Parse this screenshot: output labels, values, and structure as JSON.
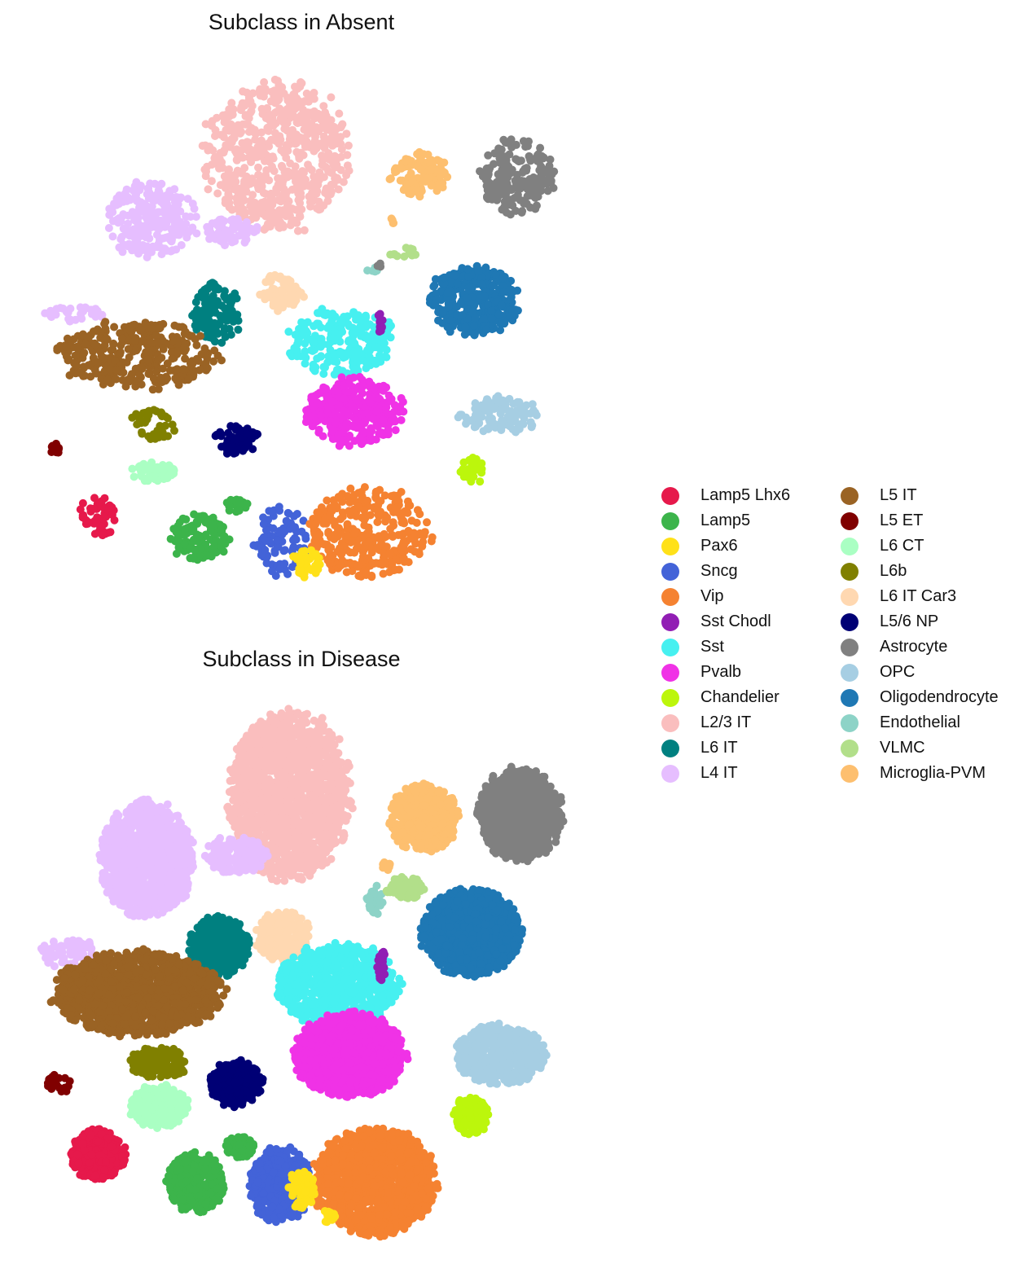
{
  "chart_data": [
    {
      "type": "scatter",
      "title": "Subclass in Absent",
      "axes_visible": false,
      "grid": false,
      "xlim": [
        0,
        700
      ],
      "ylim": [
        0,
        700
      ],
      "legend_placement": "right",
      "clusters": [
        {
          "name": "L2/3 IT",
          "x": 340,
          "y": 190,
          "rx": 95,
          "ry": 100,
          "n": 620
        },
        {
          "name": "L4 IT",
          "x": 185,
          "y": 270,
          "rx": 60,
          "ry": 50,
          "n": 260
        },
        {
          "name": "L4 IT",
          "x": 285,
          "y": 285,
          "rx": 35,
          "ry": 20,
          "n": 60
        },
        {
          "name": "L4 IT",
          "x": 90,
          "y": 385,
          "rx": 40,
          "ry": 10,
          "n": 35
        },
        {
          "name": "Microglia-PVM",
          "x": 515,
          "y": 215,
          "rx": 38,
          "ry": 30,
          "n": 110
        },
        {
          "name": "Astrocyte",
          "x": 635,
          "y": 215,
          "rx": 48,
          "ry": 50,
          "n": 190
        },
        {
          "name": "L6 IT",
          "x": 265,
          "y": 385,
          "rx": 32,
          "ry": 40,
          "n": 110
        },
        {
          "name": "L6 IT Car3",
          "x": 345,
          "y": 360,
          "rx": 30,
          "ry": 25,
          "n": 70
        },
        {
          "name": "Oligodendrocyte",
          "x": 580,
          "y": 370,
          "rx": 60,
          "ry": 45,
          "n": 330
        },
        {
          "name": "Sst",
          "x": 420,
          "y": 420,
          "rx": 70,
          "ry": 45,
          "n": 230
        },
        {
          "name": "Sst Chodl",
          "x": 467,
          "y": 395,
          "rx": 4,
          "ry": 15,
          "n": 10
        },
        {
          "name": "L5 IT",
          "x": 170,
          "y": 435,
          "rx": 105,
          "ry": 45,
          "n": 350
        },
        {
          "name": "Pvalb",
          "x": 435,
          "y": 505,
          "rx": 65,
          "ry": 45,
          "n": 330
        },
        {
          "name": "OPC",
          "x": 610,
          "y": 510,
          "rx": 55,
          "ry": 25,
          "n": 110
        },
        {
          "name": "L6b",
          "x": 190,
          "y": 520,
          "rx": 35,
          "ry": 20,
          "n": 40
        },
        {
          "name": "L5/6 NP",
          "x": 290,
          "y": 540,
          "rx": 30,
          "ry": 20,
          "n": 70
        },
        {
          "name": "L5 ET",
          "x": 68,
          "y": 550,
          "rx": 8,
          "ry": 8,
          "n": 12
        },
        {
          "name": "L6 CT",
          "x": 190,
          "y": 580,
          "rx": 30,
          "ry": 15,
          "n": 50
        },
        {
          "name": "Chandelier",
          "x": 580,
          "y": 578,
          "rx": 15,
          "ry": 18,
          "n": 30
        },
        {
          "name": "Lamp5 Lhx6",
          "x": 122,
          "y": 632,
          "rx": 25,
          "ry": 27,
          "n": 50
        },
        {
          "name": "Lamp5",
          "x": 245,
          "y": 660,
          "rx": 40,
          "ry": 30,
          "n": 120
        },
        {
          "name": "Lamp5",
          "x": 290,
          "y": 622,
          "rx": 15,
          "ry": 12,
          "n": 20
        },
        {
          "name": "Sncg",
          "x": 345,
          "y": 665,
          "rx": 35,
          "ry": 45,
          "n": 90
        },
        {
          "name": "Vip",
          "x": 455,
          "y": 655,
          "rx": 80,
          "ry": 60,
          "n": 340
        },
        {
          "name": "Pax6",
          "x": 378,
          "y": 690,
          "rx": 20,
          "ry": 22,
          "n": 35
        },
        {
          "name": "Endothelial",
          "x": 457,
          "y": 332,
          "rx": 7,
          "ry": 5,
          "n": 6
        },
        {
          "name": "VLMC",
          "x": 495,
          "y": 310,
          "rx": 20,
          "ry": 7,
          "n": 12
        },
        {
          "name": "Astrocyte",
          "x": 466,
          "y": 326,
          "rx": 4,
          "ry": 4,
          "n": 3
        },
        {
          "name": "Microglia-PVM",
          "x": 482,
          "y": 270,
          "rx": 4,
          "ry": 6,
          "n": 4
        }
      ]
    },
    {
      "type": "scatter",
      "title": "Subclass in Disease",
      "axes_visible": false,
      "grid": false,
      "xlim": [
        0,
        700
      ],
      "ylim": [
        0,
        700
      ],
      "legend_placement": "right",
      "clusters": [
        {
          "name": "L2/3 IT",
          "x": 355,
          "y": 975,
          "rx": 80,
          "ry": 110,
          "n": 1700
        },
        {
          "name": "L4 IT",
          "x": 180,
          "y": 1055,
          "rx": 62,
          "ry": 75,
          "n": 1100
        },
        {
          "name": "L4 IT",
          "x": 290,
          "y": 1050,
          "rx": 40,
          "ry": 25,
          "n": 180
        },
        {
          "name": "L4 IT",
          "x": 85,
          "y": 1170,
          "rx": 40,
          "ry": 20,
          "n": 80
        },
        {
          "name": "Microglia-PVM",
          "x": 520,
          "y": 1005,
          "rx": 45,
          "ry": 45,
          "n": 450
        },
        {
          "name": "Microglia-PVM",
          "x": 476,
          "y": 1062,
          "rx": 7,
          "ry": 7,
          "n": 12
        },
        {
          "name": "Astrocyte",
          "x": 638,
          "y": 1000,
          "rx": 55,
          "ry": 60,
          "n": 900
        },
        {
          "name": "Endothelial",
          "x": 460,
          "y": 1105,
          "rx": 12,
          "ry": 20,
          "n": 30
        },
        {
          "name": "VLMC",
          "x": 498,
          "y": 1090,
          "rx": 25,
          "ry": 15,
          "n": 60
        },
        {
          "name": "L6 IT",
          "x": 268,
          "y": 1163,
          "rx": 40,
          "ry": 40,
          "n": 480
        },
        {
          "name": "L6 IT Car3",
          "x": 348,
          "y": 1150,
          "rx": 35,
          "ry": 33,
          "n": 260
        },
        {
          "name": "Oligodendrocyte",
          "x": 578,
          "y": 1145,
          "rx": 65,
          "ry": 55,
          "n": 1300
        },
        {
          "name": "Sst",
          "x": 415,
          "y": 1210,
          "rx": 80,
          "ry": 55,
          "n": 800
        },
        {
          "name": "Sst Chodl",
          "x": 468,
          "y": 1185,
          "rx": 5,
          "ry": 25,
          "n": 25
        },
        {
          "name": "L5 IT",
          "x": 170,
          "y": 1220,
          "rx": 110,
          "ry": 55,
          "n": 1400
        },
        {
          "name": "Pvalb",
          "x": 430,
          "y": 1295,
          "rx": 72,
          "ry": 55,
          "n": 1300
        },
        {
          "name": "OPC",
          "x": 615,
          "y": 1295,
          "rx": 58,
          "ry": 40,
          "n": 500
        },
        {
          "name": "L6b",
          "x": 195,
          "y": 1305,
          "rx": 38,
          "ry": 20,
          "n": 150
        },
        {
          "name": "L5/6 NP",
          "x": 290,
          "y": 1330,
          "rx": 35,
          "ry": 30,
          "n": 280
        },
        {
          "name": "L5 ET",
          "x": 72,
          "y": 1330,
          "rx": 18,
          "ry": 12,
          "n": 22
        },
        {
          "name": "L6 CT",
          "x": 195,
          "y": 1358,
          "rx": 38,
          "ry": 28,
          "n": 260
        },
        {
          "name": "Chandelier",
          "x": 578,
          "y": 1370,
          "rx": 24,
          "ry": 25,
          "n": 140
        },
        {
          "name": "Lamp5 Lhx6",
          "x": 120,
          "y": 1418,
          "rx": 35,
          "ry": 33,
          "n": 420
        },
        {
          "name": "Lamp5",
          "x": 240,
          "y": 1452,
          "rx": 38,
          "ry": 38,
          "n": 500
        },
        {
          "name": "Lamp5",
          "x": 295,
          "y": 1408,
          "rx": 20,
          "ry": 15,
          "n": 80
        },
        {
          "name": "Sncg",
          "x": 345,
          "y": 1455,
          "rx": 40,
          "ry": 50,
          "n": 420
        },
        {
          "name": "Vip",
          "x": 460,
          "y": 1450,
          "rx": 80,
          "ry": 70,
          "n": 1400
        },
        {
          "name": "Pax6",
          "x": 370,
          "y": 1460,
          "rx": 18,
          "ry": 25,
          "n": 90
        },
        {
          "name": "Pax6",
          "x": 403,
          "y": 1493,
          "rx": 10,
          "ry": 10,
          "n": 20
        }
      ]
    }
  ],
  "legend": {
    "columns": [
      [
        {
          "label": "Lamp5 Lhx6",
          "color": "#e6194b"
        },
        {
          "label": "Lamp5",
          "color": "#3cb44b"
        },
        {
          "label": "Pax6",
          "color": "#ffe119"
        },
        {
          "label": "Sncg",
          "color": "#4363d8"
        },
        {
          "label": "Vip",
          "color": "#f58231"
        },
        {
          "label": "Sst Chodl",
          "color": "#911eb4"
        },
        {
          "label": "Sst",
          "color": "#46f0f0"
        },
        {
          "label": "Pvalb",
          "color": "#f032e6"
        },
        {
          "label": "Chandelier",
          "color": "#bcf60c"
        },
        {
          "label": "L2/3 IT",
          "color": "#fabebe"
        },
        {
          "label": "L6 IT",
          "color": "#008080"
        },
        {
          "label": "L4 IT",
          "color": "#e6beff"
        }
      ],
      [
        {
          "label": "L5 IT",
          "color": "#9a6324"
        },
        {
          "label": "L5 ET",
          "color": "#800000"
        },
        {
          "label": "L6 CT",
          "color": "#aaffc3"
        },
        {
          "label": "L6b",
          "color": "#808000"
        },
        {
          "label": "L6 IT Car3",
          "color": "#ffd8b1"
        },
        {
          "label": "L5/6 NP",
          "color": "#000075"
        },
        {
          "label": "Astrocyte",
          "color": "#808080"
        },
        {
          "label": "OPC",
          "color": "#a6cee3"
        },
        {
          "label": "Oligodendrocyte",
          "color": "#1f78b4"
        },
        {
          "label": "Endothelial",
          "color": "#8dd3c7"
        },
        {
          "label": "VLMC",
          "color": "#b2df8a"
        },
        {
          "label": "Microglia-PVM",
          "color": "#fdbf6f"
        }
      ]
    ]
  }
}
